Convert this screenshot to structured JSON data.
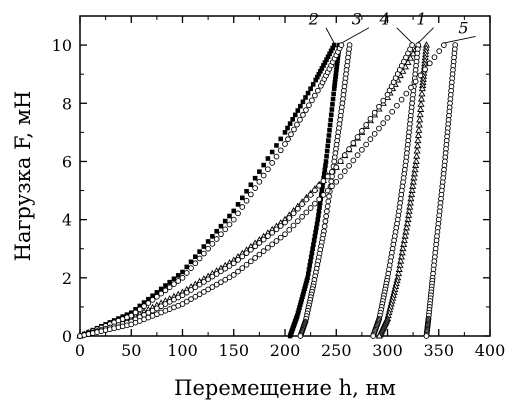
{
  "chart_data": {
    "type": "scatter",
    "title": "",
    "xlabel": "Перемещение h, нм",
    "ylabel": "Нагрузка F, мН",
    "xlim": [
      0,
      400
    ],
    "ylim": [
      0,
      11
    ],
    "x_ticks": [
      "0",
      "50",
      "100",
      "150",
      "200",
      "250",
      "300",
      "350",
      "400"
    ],
    "y_ticks": [
      "0",
      "2",
      "4",
      "6",
      "8",
      "10"
    ],
    "grid": false,
    "legend": "none",
    "series": [
      {
        "name": "1",
        "marker": "open-triangle",
        "loading": [
          [
            0,
            0
          ],
          [
            50,
            0.6
          ],
          [
            100,
            1.5
          ],
          [
            150,
            2.6
          ],
          [
            200,
            4.0
          ],
          [
            250,
            5.8
          ],
          [
            300,
            8.2
          ],
          [
            330,
            10.0
          ]
        ],
        "unloading": [
          [
            338,
            10.0
          ],
          [
            334,
            8.5
          ],
          [
            328,
            6.0
          ],
          [
            320,
            4.0
          ],
          [
            310,
            2.0
          ],
          [
            300,
            0.6
          ],
          [
            292,
            0
          ]
        ]
      },
      {
        "name": "2",
        "marker": "filled-square",
        "loading": [
          [
            0,
            0
          ],
          [
            50,
            0.8
          ],
          [
            100,
            2.2
          ],
          [
            150,
            4.3
          ],
          [
            200,
            7.0
          ],
          [
            230,
            8.8
          ],
          [
            248,
            10.0
          ]
        ],
        "unloading": [
          [
            253,
            10.0
          ],
          [
            248,
            8.5
          ],
          [
            240,
            6.0
          ],
          [
            232,
            4.0
          ],
          [
            222,
            2.0
          ],
          [
            212,
            0.7
          ],
          [
            205,
            0
          ]
        ]
      },
      {
        "name": "3",
        "marker": "open-circle",
        "loading": [
          [
            0,
            0
          ],
          [
            50,
            0.7
          ],
          [
            100,
            2.0
          ],
          [
            150,
            4.0
          ],
          [
            200,
            6.6
          ],
          [
            235,
            8.6
          ],
          [
            255,
            10.0
          ]
        ],
        "unloading": [
          [
            263,
            10.0
          ],
          [
            256,
            8.0
          ],
          [
            248,
            6.0
          ],
          [
            238,
            3.6
          ],
          [
            228,
            1.8
          ],
          [
            220,
            0.5
          ],
          [
            215,
            0
          ]
        ]
      },
      {
        "name": "4",
        "marker": "open-circle",
        "loading": [
          [
            0,
            0
          ],
          [
            50,
            0.5
          ],
          [
            100,
            1.4
          ],
          [
            150,
            2.5
          ],
          [
            200,
            3.9
          ],
          [
            250,
            5.8
          ],
          [
            300,
            8.3
          ],
          [
            324,
            10.0
          ]
        ],
        "unloading": [
          [
            330,
            10.0
          ],
          [
            324,
            8.0
          ],
          [
            318,
            6.0
          ],
          [
            310,
            4.0
          ],
          [
            300,
            2.0
          ],
          [
            292,
            0.6
          ],
          [
            286,
            0
          ]
        ]
      },
      {
        "name": "5",
        "marker": "open-circle",
        "loading": [
          [
            0,
            0
          ],
          [
            50,
            0.4
          ],
          [
            100,
            1.1
          ],
          [
            150,
            2.1
          ],
          [
            200,
            3.5
          ],
          [
            250,
            5.3
          ],
          [
            300,
            7.5
          ],
          [
            355,
            10.0
          ]
        ],
        "unloading": [
          [
            366,
            10.0
          ],
          [
            361,
            8.0
          ],
          [
            356,
            6.0
          ],
          [
            350,
            4.0
          ],
          [
            344,
            2.0
          ],
          [
            340,
            0.6
          ],
          [
            338,
            0
          ]
        ]
      }
    ],
    "curve_labels": [
      {
        "text": "1",
        "x": 342,
        "y": 10.7
      },
      {
        "text": "2",
        "x": 237,
        "y": 10.7
      },
      {
        "text": "3",
        "x": 279,
        "y": 10.7
      },
      {
        "text": "4",
        "x": 306,
        "y": 10.7
      },
      {
        "text": "5",
        "x": 383,
        "y": 10.4
      }
    ]
  }
}
